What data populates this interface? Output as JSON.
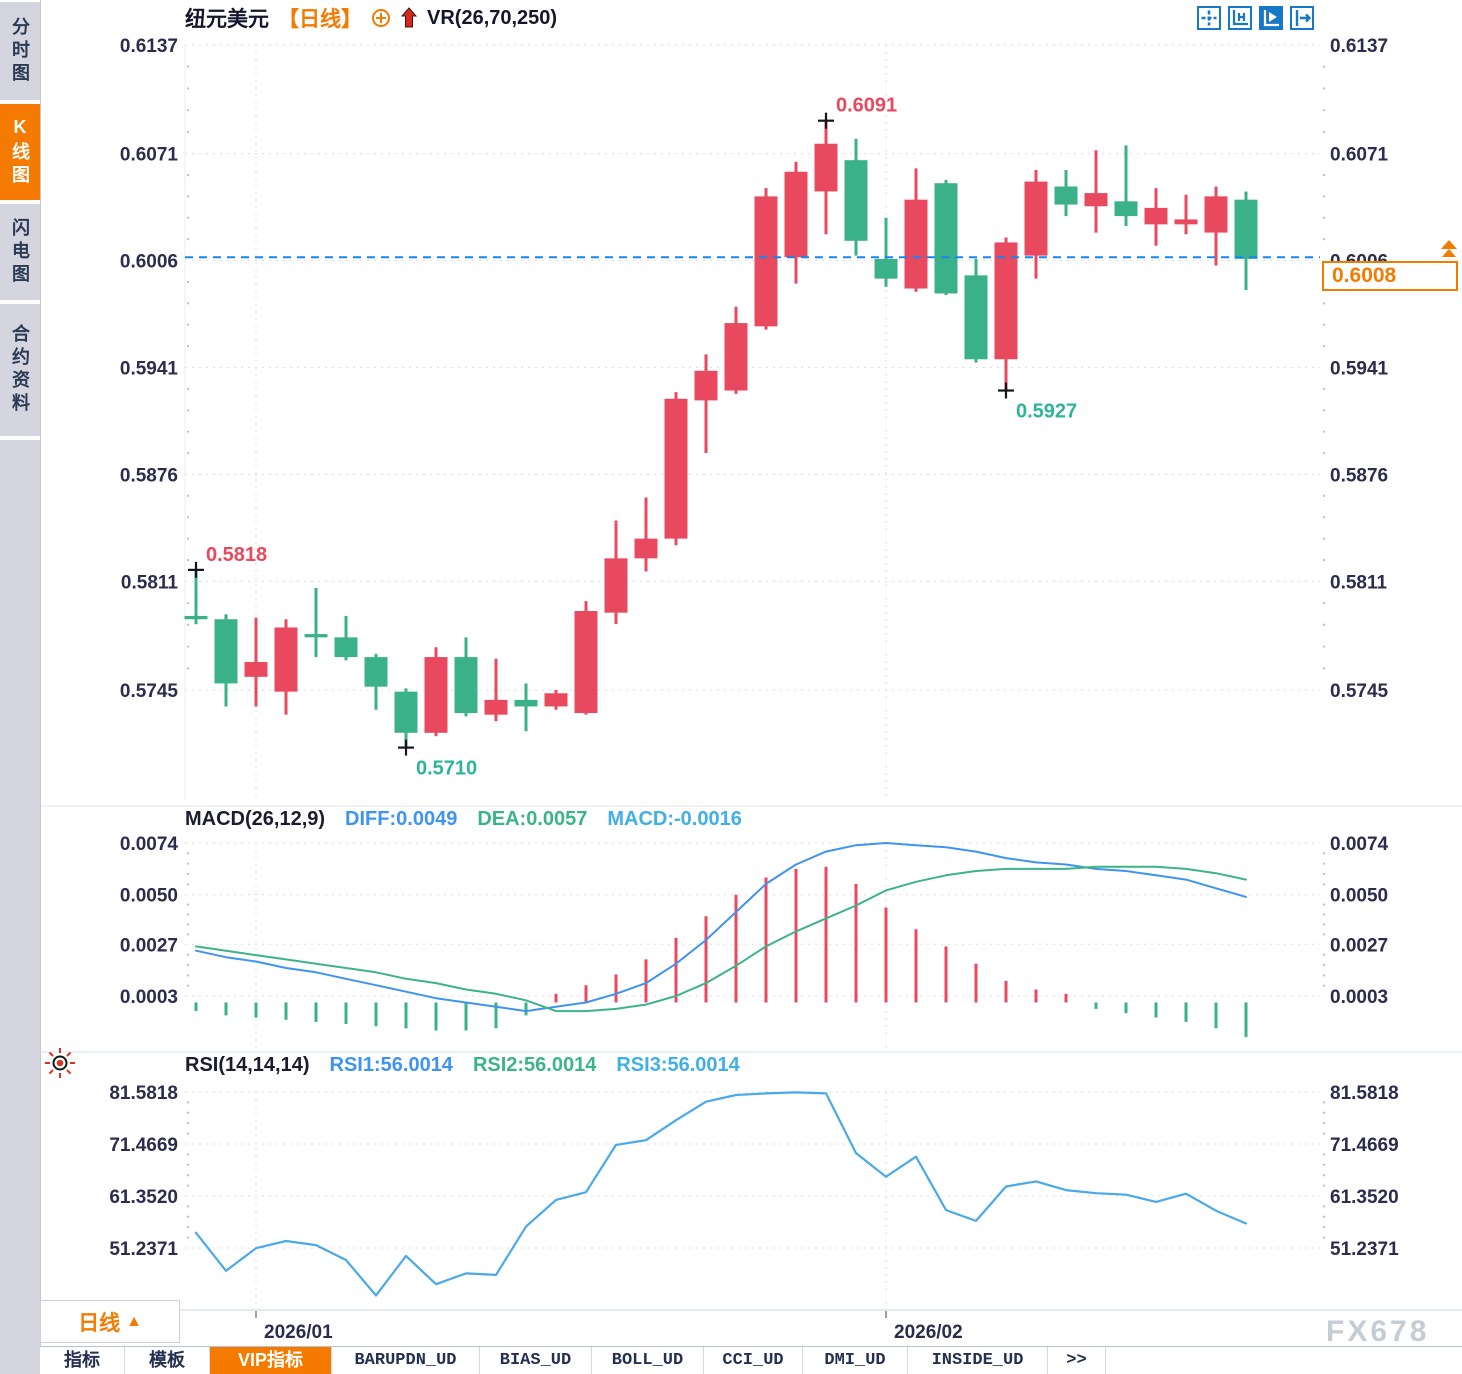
{
  "app": {
    "watermark": "FX678"
  },
  "colors": {
    "up_candle": "#e9495e",
    "down_candle": "#3bb189",
    "diff_line": "#3f94ef",
    "dea_line": "#3cb487",
    "macd_value": "#41b0e6",
    "rsi_line": "#49a9e9",
    "current_price_line": "#1585f0",
    "accent": "#f47a00",
    "axis_text": "#2c2c4e",
    "annotation_up": "#e9495e",
    "annotation_down": "#2eb49c"
  },
  "sidebar": {
    "items": [
      {
        "label": "分时图",
        "active": false
      },
      {
        "label": "K线图",
        "active": true
      },
      {
        "label": "闪电图",
        "active": false
      },
      {
        "label": "合约资料",
        "active": false
      }
    ]
  },
  "header": {
    "symbol": "纽元美元",
    "period_tag": "【日线】",
    "indicator_label": "VR(26,70,250)"
  },
  "footer": {
    "timeframe_label": "日线",
    "timeframe_arrow": "▲"
  },
  "bottom_tabs": {
    "items": [
      {
        "label": "指标",
        "active": false
      },
      {
        "label": "模板",
        "active": false
      },
      {
        "label": "VIP指标",
        "active": true
      },
      {
        "label": "BARUPDN_UD",
        "active": false
      },
      {
        "label": "BIAS_UD",
        "active": false
      },
      {
        "label": "BOLL_UD",
        "active": false
      },
      {
        "label": "CCI_UD",
        "active": false
      },
      {
        "label": "DMI_UD",
        "active": false
      },
      {
        "label": "INSIDE_UD",
        "active": false
      },
      {
        "label": ">>",
        "active": false
      }
    ]
  },
  "chart_data": [
    {
      "type": "candlestick",
      "title": "纽元美元【日线】",
      "overlay_indicator": "VR(26,70,250)",
      "legend_position": "top-left",
      "grid": true,
      "ylim": [
        0.5702,
        0.614
      ],
      "yticks": [
        {
          "label": "0.6137",
          "value": 0.6137
        },
        {
          "label": "0.6071",
          "value": 0.6071
        },
        {
          "label": "0.6006",
          "value": 0.6006
        },
        {
          "label": "0.5941",
          "value": 0.5941
        },
        {
          "label": "0.5876",
          "value": 0.5876
        },
        {
          "label": "0.5811",
          "value": 0.5811
        },
        {
          "label": "0.5745",
          "value": 0.5745
        }
      ],
      "xticks": [
        {
          "label": "2026/01",
          "candle_index": 2
        },
        {
          "label": "2026/02",
          "candle_index": 23
        }
      ],
      "current_price": {
        "label": "0.6008",
        "value": 0.6008
      },
      "annotations": [
        {
          "text": "0.5818",
          "value": 0.5818,
          "candle_index": 0,
          "placement": "above",
          "color": "#e9495e"
        },
        {
          "text": "0.5710",
          "value": 0.571,
          "candle_index": 7,
          "placement": "below",
          "color": "#2eb49c"
        },
        {
          "text": "0.6091",
          "value": 0.6091,
          "candle_index": 21,
          "placement": "above",
          "color": "#e9495e"
        },
        {
          "text": "0.5927",
          "value": 0.5927,
          "candle_index": 27,
          "placement": "below",
          "color": "#2eb49c"
        }
      ],
      "candles": [
        {
          "o": 0.579,
          "h": 0.5818,
          "l": 0.5785,
          "c": 0.5788
        },
        {
          "o": 0.5788,
          "h": 0.5791,
          "l": 0.5735,
          "c": 0.5749
        },
        {
          "o": 0.5753,
          "h": 0.5789,
          "l": 0.5735,
          "c": 0.5762
        },
        {
          "o": 0.5744,
          "h": 0.5788,
          "l": 0.573,
          "c": 0.5783
        },
        {
          "o": 0.5779,
          "h": 0.5807,
          "l": 0.5765,
          "c": 0.5777
        },
        {
          "o": 0.5777,
          "h": 0.579,
          "l": 0.5763,
          "c": 0.5765
        },
        {
          "o": 0.5765,
          "h": 0.5767,
          "l": 0.5733,
          "c": 0.5747
        },
        {
          "o": 0.5744,
          "h": 0.5746,
          "l": 0.571,
          "c": 0.5719
        },
        {
          "o": 0.5719,
          "h": 0.5771,
          "l": 0.5717,
          "c": 0.5765
        },
        {
          "o": 0.5765,
          "h": 0.5777,
          "l": 0.5729,
          "c": 0.5731
        },
        {
          "o": 0.573,
          "h": 0.5764,
          "l": 0.5726,
          "c": 0.5739
        },
        {
          "o": 0.5739,
          "h": 0.5749,
          "l": 0.572,
          "c": 0.5735
        },
        {
          "o": 0.5735,
          "h": 0.5745,
          "l": 0.5733,
          "c": 0.5743
        },
        {
          "o": 0.5731,
          "h": 0.5799,
          "l": 0.573,
          "c": 0.5793
        },
        {
          "o": 0.5792,
          "h": 0.5848,
          "l": 0.5785,
          "c": 0.5825
        },
        {
          "o": 0.5825,
          "h": 0.5862,
          "l": 0.5817,
          "c": 0.5837
        },
        {
          "o": 0.5837,
          "h": 0.5926,
          "l": 0.5833,
          "c": 0.5922
        },
        {
          "o": 0.5921,
          "h": 0.5949,
          "l": 0.5889,
          "c": 0.5939
        },
        {
          "o": 0.5927,
          "h": 0.5978,
          "l": 0.5925,
          "c": 0.5968
        },
        {
          "o": 0.5966,
          "h": 0.605,
          "l": 0.5964,
          "c": 0.6045
        },
        {
          "o": 0.6008,
          "h": 0.6066,
          "l": 0.5992,
          "c": 0.606
        },
        {
          "o": 0.6048,
          "h": 0.6091,
          "l": 0.6022,
          "c": 0.6077
        },
        {
          "o": 0.6067,
          "h": 0.608,
          "l": 0.6009,
          "c": 0.6018
        },
        {
          "o": 0.6007,
          "h": 0.6032,
          "l": 0.599,
          "c": 0.5995
        },
        {
          "o": 0.5989,
          "h": 0.6062,
          "l": 0.5987,
          "c": 0.6043
        },
        {
          "o": 0.6053,
          "h": 0.6055,
          "l": 0.5985,
          "c": 0.5986
        },
        {
          "o": 0.5997,
          "h": 0.6007,
          "l": 0.5944,
          "c": 0.5946
        },
        {
          "o": 0.5946,
          "h": 0.602,
          "l": 0.5927,
          "c": 0.6017
        },
        {
          "o": 0.6009,
          "h": 0.6061,
          "l": 0.5995,
          "c": 0.6054
        },
        {
          "o": 0.6051,
          "h": 0.6061,
          "l": 0.6033,
          "c": 0.604
        },
        {
          "o": 0.6039,
          "h": 0.6073,
          "l": 0.6023,
          "c": 0.6047
        },
        {
          "o": 0.6042,
          "h": 0.6076,
          "l": 0.6027,
          "c": 0.6033
        },
        {
          "o": 0.6028,
          "h": 0.605,
          "l": 0.6015,
          "c": 0.6038
        },
        {
          "o": 0.6028,
          "h": 0.6046,
          "l": 0.6022,
          "c": 0.6031
        },
        {
          "o": 0.6023,
          "h": 0.6051,
          "l": 0.6003,
          "c": 0.6045
        },
        {
          "o": 0.6043,
          "h": 0.6048,
          "l": 0.5988,
          "c": 0.6007
        }
      ]
    },
    {
      "type": "line",
      "title": "MACD(26,12,9)",
      "legend": [
        {
          "label": "DIFF:0.0049",
          "color": "#3f94ef"
        },
        {
          "label": "DEA:0.0057",
          "color": "#3cb487"
        },
        {
          "label": "MACD:-0.0016",
          "color": "#41b0e6"
        }
      ],
      "yticks": [
        {
          "label": "0.0074",
          "value": 0.0074
        },
        {
          "label": "0.0050",
          "value": 0.005
        },
        {
          "label": "0.0027",
          "value": 0.0027
        },
        {
          "label": "0.0003",
          "value": 0.0003
        }
      ],
      "diff": [
        0.0024,
        0.0021,
        0.0019,
        0.0016,
        0.0014,
        0.0011,
        0.0008,
        0.0005,
        0.0002,
        0.0,
        -0.0002,
        -0.0004,
        -0.0002,
        0.0,
        0.0004,
        0.0009,
        0.0018,
        0.0029,
        0.0042,
        0.0055,
        0.0064,
        0.007,
        0.0073,
        0.0074,
        0.0073,
        0.0072,
        0.007,
        0.0067,
        0.0065,
        0.0064,
        0.0062,
        0.0061,
        0.0059,
        0.0057,
        0.0053,
        0.0049
      ],
      "dea": [
        0.0026,
        0.0024,
        0.0022,
        0.002,
        0.0018,
        0.0016,
        0.0014,
        0.0011,
        0.0009,
        0.0006,
        0.0004,
        0.0001,
        -0.0004,
        -0.0004,
        -0.0003,
        -0.0001,
        0.0003,
        0.0009,
        0.0017,
        0.0026,
        0.0033,
        0.0039,
        0.0045,
        0.0052,
        0.0056,
        0.0059,
        0.0061,
        0.0062,
        0.0062,
        0.0062,
        0.0063,
        0.0063,
        0.0063,
        0.0062,
        0.006,
        0.0057
      ],
      "histogram": [
        -0.0004,
        -0.0006,
        -0.0007,
        -0.0008,
        -0.0009,
        -0.001,
        -0.0011,
        -0.0012,
        -0.0013,
        -0.0013,
        -0.0012,
        -0.0006,
        0.0004,
        0.0008,
        0.0013,
        0.002,
        0.003,
        0.004,
        0.005,
        0.0058,
        0.0062,
        0.0063,
        0.0055,
        0.0044,
        0.0034,
        0.0026,
        0.0018,
        0.001,
        0.0006,
        0.0004,
        -0.0003,
        -0.0005,
        -0.0007,
        -0.0009,
        -0.0012,
        -0.0016
      ]
    },
    {
      "type": "line",
      "title": "RSI(14,14,14)",
      "legend": [
        {
          "label": "RSI1:56.0014",
          "color": "#3f94ef"
        },
        {
          "label": "RSI2:56.0014",
          "color": "#3cb487"
        },
        {
          "label": "RSI3:56.0014",
          "color": "#41b0e6"
        }
      ],
      "yticks": [
        {
          "label": "81.5818",
          "value": 81.5818
        },
        {
          "label": "71.4669",
          "value": 71.4669
        },
        {
          "label": "61.3520",
          "value": 61.352
        },
        {
          "label": "51.2371",
          "value": 51.2371
        }
      ],
      "values": [
        54.2,
        46.8,
        51.2,
        52.6,
        51.8,
        48.9,
        42.0,
        49.7,
        44.2,
        46.3,
        46.0,
        55.4,
        60.6,
        62.1,
        71.3,
        72.2,
        76.1,
        79.7,
        81.0,
        81.3,
        81.5,
        81.3,
        69.7,
        65.1,
        69.0,
        58.6,
        56.5,
        63.2,
        64.2,
        62.5,
        61.9,
        61.6,
        60.2,
        61.8,
        58.5,
        56.0
      ]
    }
  ]
}
